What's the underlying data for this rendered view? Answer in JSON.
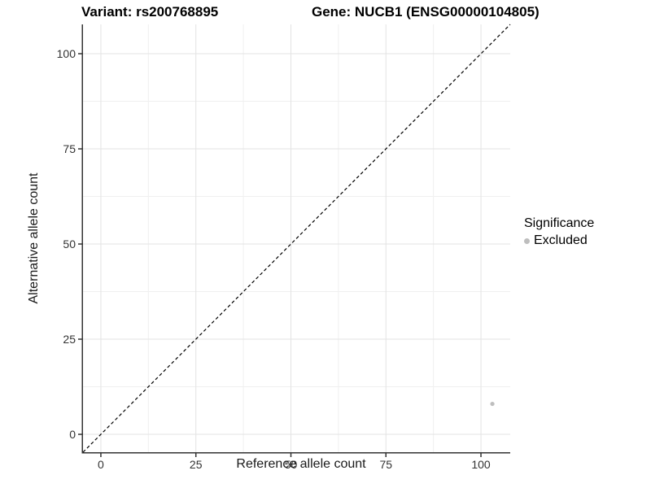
{
  "chart_data": {
    "type": "scatter",
    "title_left": "Variant: rs200768895",
    "title_right": "Gene: NUCB1 (ENSG00000104805)",
    "xlabel": "Reference allele count",
    "ylabel": "Alternative allele count",
    "xlim": [
      -4.7,
      107.7
    ],
    "ylim": [
      -4.7,
      107.7
    ],
    "x_ticks": [
      0,
      25,
      50,
      75,
      100
    ],
    "y_ticks": [
      0,
      25,
      50,
      75,
      100
    ],
    "minor_ticks": [
      12.5,
      37.5,
      62.5,
      87.5
    ],
    "grid": true,
    "reference_line": {
      "type": "identity",
      "style": "dashed",
      "color": "#000000"
    },
    "series": [
      {
        "name": "Excluded",
        "color": "#bebebe",
        "points": [
          {
            "x": 103,
            "y": 8
          }
        ]
      }
    ],
    "legend": {
      "title": "Significance",
      "position": "right",
      "items": [
        {
          "label": "Excluded",
          "color": "#bebebe"
        }
      ]
    }
  },
  "colors": {
    "background": "#ffffff",
    "grid_major": "#e3e3e3",
    "grid_minor": "#f0f0f0",
    "axis_line": "#333333",
    "tick_mark": "#333333",
    "tick_label": "#333333",
    "point": "#bebebe",
    "title_text": "#000000"
  }
}
